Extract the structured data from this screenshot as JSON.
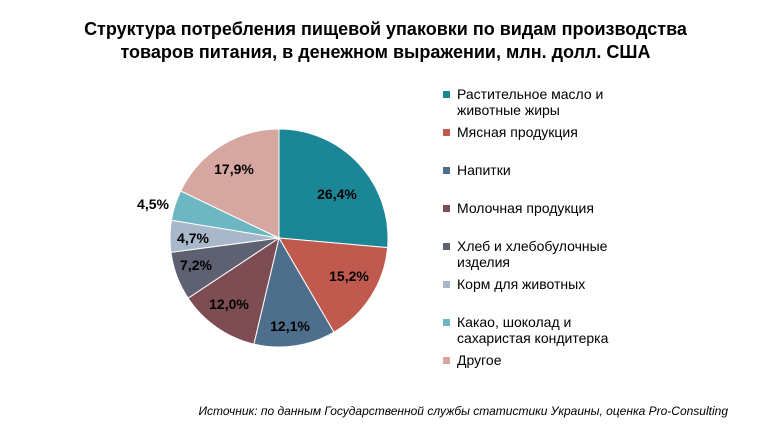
{
  "title_lines": [
    "Структура потребления пищевой упаковки по видам производства",
    "товаров питания, в денежном выражении, млн. долл. США"
  ],
  "source": "Источник: по данным Государственной службы статистики Украины, оценка Pro-Consulting",
  "chart_data": {
    "type": "pie",
    "start_angle_deg": 0,
    "direction": "clockwise",
    "legend_position": "right",
    "slices": [
      {
        "name": "Растительное масло и животные жиры",
        "legend_lines": [
          "Растительное масло и",
          "животные жиры"
        ],
        "value": 26.4,
        "label": "26,4%",
        "color": "#1a8696"
      },
      {
        "name": "Мясная продукция",
        "legend_lines": [
          "Мясная продукция"
        ],
        "value": 15.2,
        "label": "15,2%",
        "color": "#c05a4e"
      },
      {
        "name": "Напитки",
        "legend_lines": [
          "Напитки"
        ],
        "value": 12.1,
        "label": "12,1%",
        "color": "#4e6f8c"
      },
      {
        "name": "Молочная продукция",
        "legend_lines": [
          "Молочная продукция"
        ],
        "value": 12.0,
        "label": "12,0%",
        "color": "#7e4c53"
      },
      {
        "name": "Хлеб и хлебобулочные изделия",
        "legend_lines": [
          "Хлеб и хлебобулочные",
          "изделия"
        ],
        "value": 7.2,
        "label": "7,2%",
        "color": "#5d6171"
      },
      {
        "name": "Корм для животных",
        "legend_lines": [
          "Корм для животных"
        ],
        "value": 4.7,
        "label": "4,7%",
        "color": "#a8b7c9"
      },
      {
        "name": "Какао, шоколад и сахаристая кондитерка",
        "legend_lines": [
          "Какао, шоколад и",
          "сахаристая кондитерка"
        ],
        "value": 4.5,
        "label": "4,5%",
        "color": "#6cb7c1"
      },
      {
        "name": "Другое",
        "legend_lines": [
          "Другое"
        ],
        "value": 17.9,
        "label": "17,9%",
        "color": "#d6a7a1"
      }
    ]
  }
}
